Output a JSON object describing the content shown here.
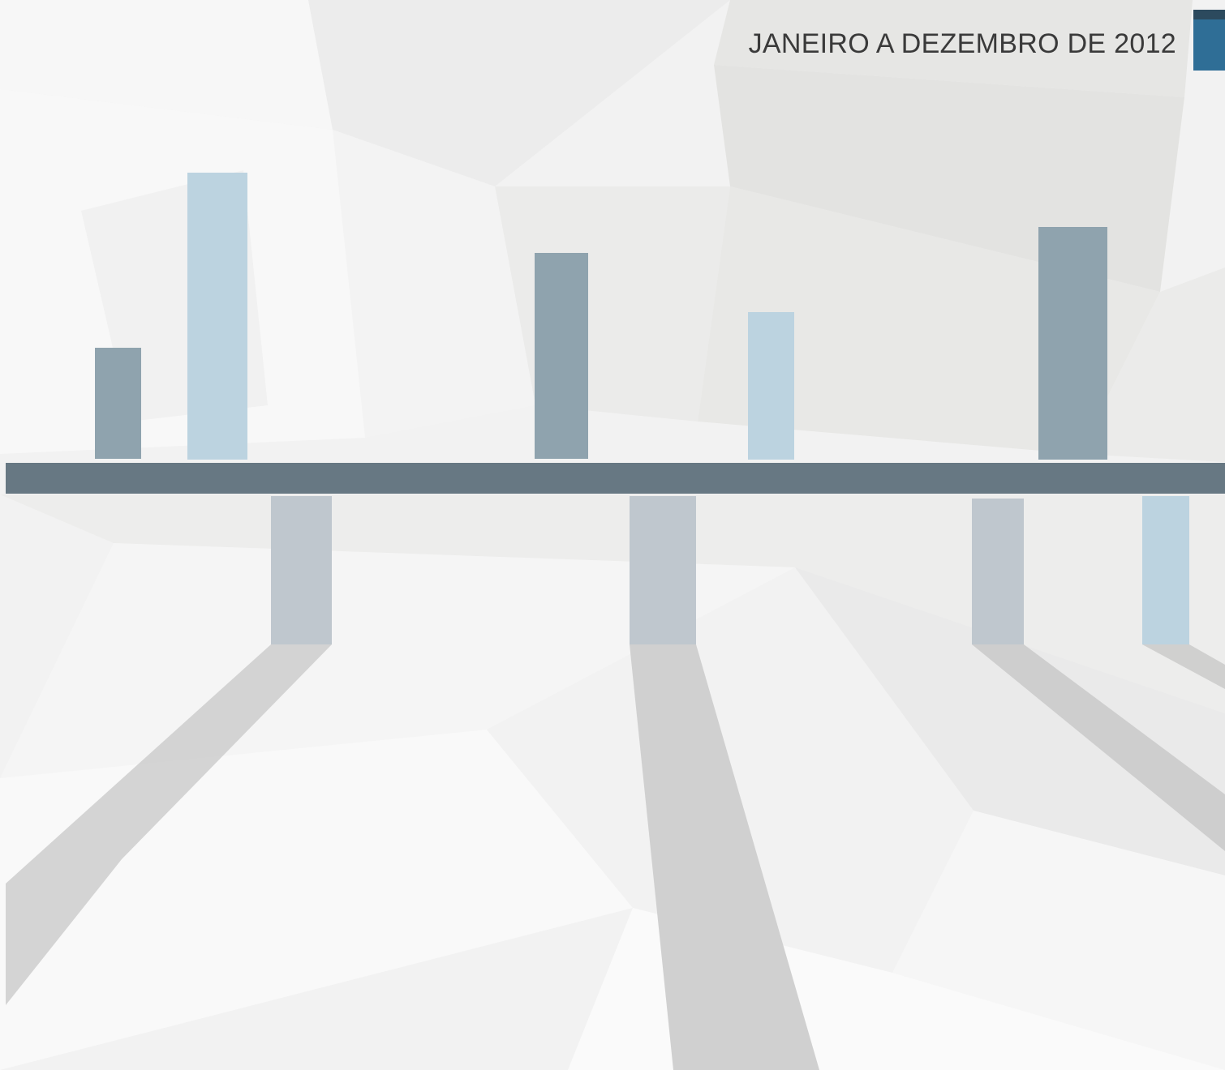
{
  "header": {
    "title": "JANEIRO A DEZEMBRO DE 2012"
  },
  "colors": {
    "background": "#f2f2f2",
    "baseline": "#677883",
    "bar_dark": "#8fa3ae",
    "bar_light_blue": "#bcd3e0",
    "bar_gray": "#bfc7ce",
    "shadow": "#cfcfcf",
    "accent_tab_top": "#2c4a5e",
    "accent_tab": "#2f6e96"
  },
  "bars": [
    {
      "direction": "up",
      "color": "bar_dark"
    },
    {
      "direction": "up",
      "color": "bar_light_blue"
    },
    {
      "direction": "down",
      "color": "bar_gray"
    },
    {
      "direction": "up",
      "color": "bar_dark"
    },
    {
      "direction": "down",
      "color": "bar_gray"
    },
    {
      "direction": "up",
      "color": "bar_light_blue"
    },
    {
      "direction": "down",
      "color": "bar_gray"
    },
    {
      "direction": "up",
      "color": "bar_dark"
    },
    {
      "direction": "down",
      "color": "bar_light_blue"
    }
  ]
}
